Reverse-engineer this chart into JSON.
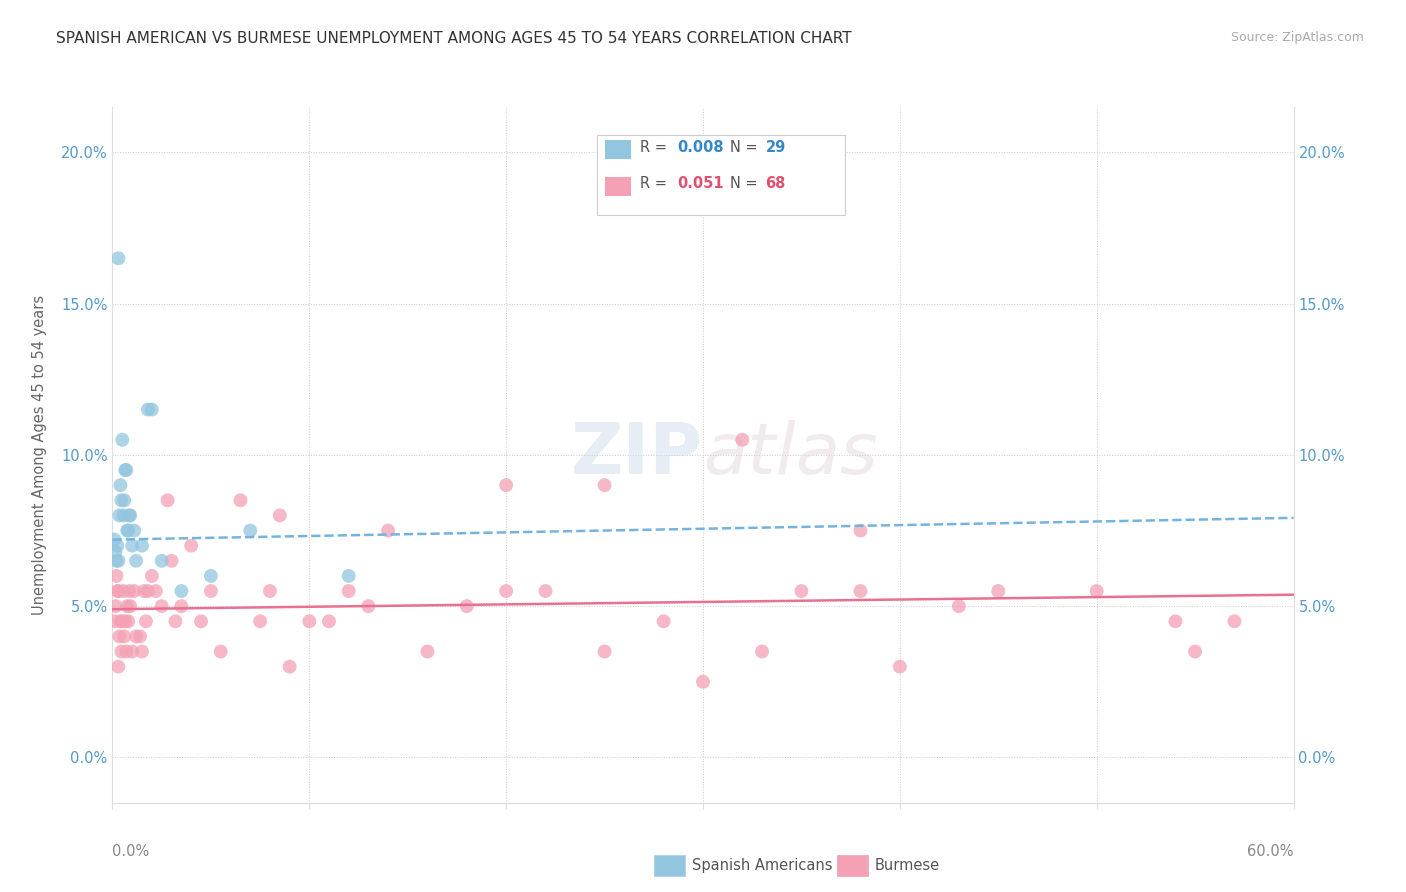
{
  "title": "SPANISH AMERICAN VS BURMESE UNEMPLOYMENT AMONG AGES 45 TO 54 YEARS CORRELATION CHART",
  "source": "Source: ZipAtlas.com",
  "ylabel": "Unemployment Among Ages 45 to 54 years",
  "ytick_values": [
    0.0,
    5.0,
    10.0,
    15.0,
    20.0
  ],
  "xlim": [
    0.0,
    60.0
  ],
  "ylim": [
    -1.5,
    21.5
  ],
  "color_blue": "#92c5de",
  "color_pink": "#f4a0b5",
  "color_blue_line": "#74b3e0",
  "color_pink_line": "#e87090",
  "watermark_text": "ZIPatlas",
  "trend_sp_slope": 0.012,
  "trend_sp_intercept": 7.2,
  "trend_bu_slope": 0.008,
  "trend_bu_intercept": 4.9,
  "spanish_x": [
    0.1,
    0.15,
    0.2,
    0.25,
    0.3,
    0.35,
    0.4,
    0.45,
    0.5,
    0.55,
    0.6,
    0.65,
    0.7,
    0.75,
    0.8,
    0.85,
    0.9,
    1.0,
    1.1,
    1.2,
    1.5,
    1.8,
    2.0,
    2.5,
    3.5,
    5.0,
    7.0,
    12.0,
    0.3
  ],
  "spanish_y": [
    7.2,
    6.8,
    6.5,
    7.0,
    6.5,
    8.0,
    9.0,
    8.5,
    10.5,
    8.0,
    8.5,
    9.5,
    9.5,
    7.5,
    7.5,
    8.0,
    8.0,
    7.0,
    7.5,
    6.5,
    7.0,
    11.5,
    11.5,
    6.5,
    5.5,
    6.0,
    7.5,
    6.0,
    16.5
  ],
  "burmese_x": [
    0.1,
    0.15,
    0.2,
    0.25,
    0.3,
    0.35,
    0.4,
    0.45,
    0.5,
    0.55,
    0.6,
    0.65,
    0.7,
    0.75,
    0.8,
    0.85,
    0.9,
    1.0,
    1.1,
    1.2,
    1.4,
    1.5,
    1.6,
    1.7,
    1.8,
    2.0,
    2.2,
    2.5,
    2.8,
    3.0,
    3.2,
    3.5,
    4.0,
    4.5,
    5.0,
    5.5,
    6.5,
    7.5,
    8.0,
    9.0,
    10.0,
    11.0,
    12.0,
    13.0,
    14.0,
    16.0,
    18.0,
    20.0,
    22.0,
    25.0,
    28.0,
    30.0,
    33.0,
    35.0,
    38.0,
    40.0,
    43.0,
    45.0,
    50.0,
    54.0,
    57.0,
    25.0,
    32.0,
    8.5,
    55.0,
    38.0,
    20.0,
    0.3
  ],
  "burmese_y": [
    4.5,
    5.0,
    6.0,
    5.5,
    5.5,
    4.0,
    4.5,
    3.5,
    4.5,
    5.5,
    4.0,
    4.5,
    3.5,
    5.0,
    4.5,
    5.5,
    5.0,
    3.5,
    5.5,
    4.0,
    4.0,
    3.5,
    5.5,
    4.5,
    5.5,
    6.0,
    5.5,
    5.0,
    8.5,
    6.5,
    4.5,
    5.0,
    7.0,
    4.5,
    5.5,
    3.5,
    8.5,
    4.5,
    5.5,
    3.0,
    4.5,
    4.5,
    5.5,
    5.0,
    7.5,
    3.5,
    5.0,
    5.5,
    5.5,
    3.5,
    4.5,
    2.5,
    3.5,
    5.5,
    5.5,
    3.0,
    5.0,
    5.5,
    5.5,
    4.5,
    4.5,
    9.0,
    10.5,
    8.0,
    3.5,
    7.5,
    9.0,
    3.0
  ]
}
